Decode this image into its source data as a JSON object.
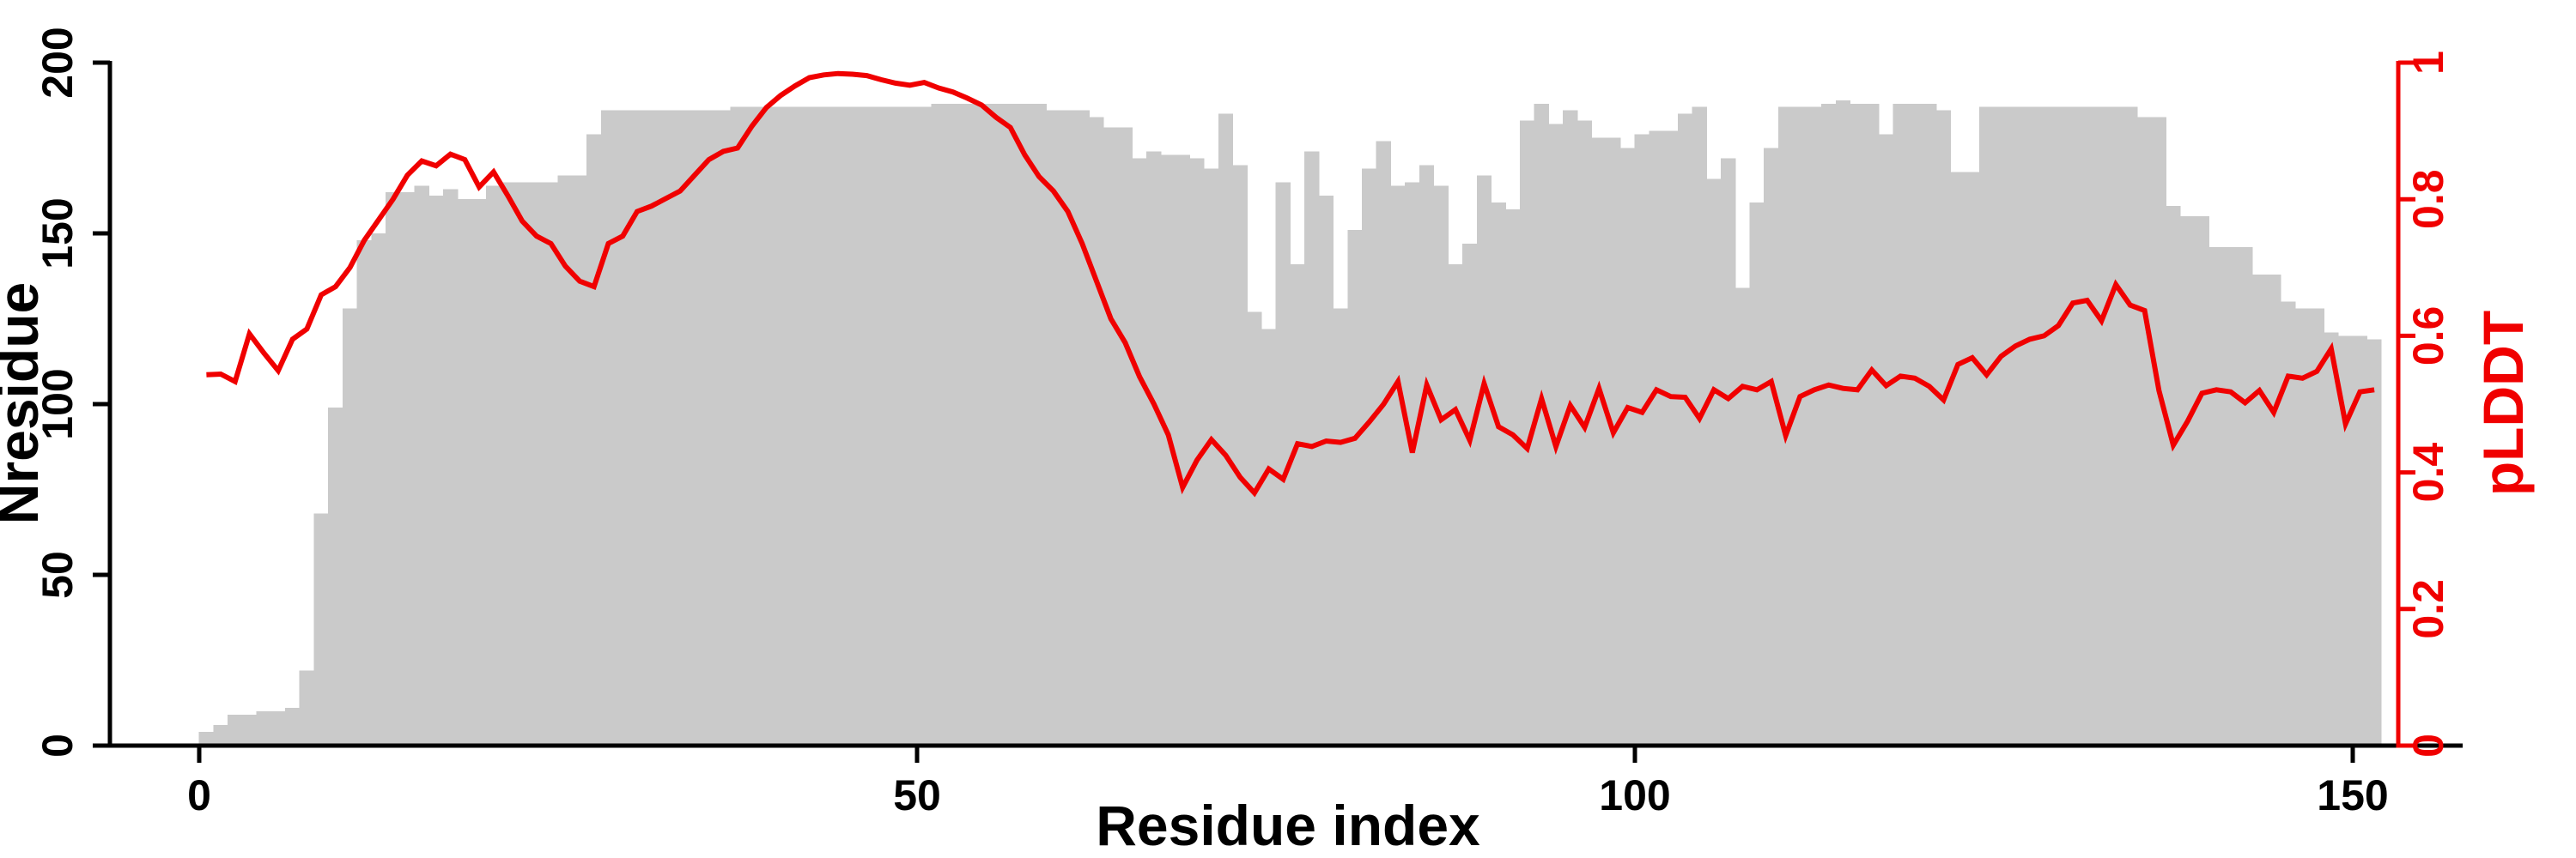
{
  "chart_data": {
    "type": "bar",
    "subtype": "dual-axis bar+line",
    "title": "",
    "xlabel": "Residue index",
    "ylabel_left": "Nresidue",
    "ylabel_right": "pLDDT",
    "grid": false,
    "legend_position": "none",
    "background_color": "#ffffff",
    "bar_color": "#cacaca",
    "line_color": "#f00000",
    "left_axis_color": "#000000",
    "right_axis_color": "#f00000",
    "x_axis": {
      "label": "Residue index",
      "tick_values": [
        0,
        50,
        100,
        150
      ],
      "tick_labels": [
        "0",
        "50",
        "100",
        "150"
      ],
      "range": [
        0,
        152
      ]
    },
    "y_axis_left": {
      "label": "Nresidue",
      "tick_values": [
        0,
        50,
        100,
        150,
        200
      ],
      "tick_labels": [
        "0",
        "50",
        "100",
        "150",
        "200"
      ],
      "range": [
        0,
        200
      ]
    },
    "y_axis_right": {
      "label": "pLDDT",
      "tick_values": [
        0,
        0.2,
        0.4,
        0.6,
        0.8,
        1
      ],
      "tick_labels": [
        "0",
        "0.2",
        "0.4",
        "0.6",
        "0.8",
        "1"
      ],
      "range": [
        0,
        1
      ]
    },
    "n_residues": 152,
    "x_first_residue": 1,
    "series": [
      {
        "name": "Nresidue",
        "type": "bar",
        "axis": "left",
        "color": "#cacaca",
        "values": [
          4,
          6,
          9,
          9,
          10,
          10,
          11,
          22,
          68,
          99,
          128,
          148,
          150,
          162,
          162,
          164,
          161,
          163,
          160,
          160,
          164,
          165,
          165,
          165,
          165,
          167,
          167,
          179,
          186,
          186,
          186,
          186,
          186,
          186,
          186,
          186,
          186,
          187,
          187,
          187,
          187,
          187,
          187,
          187,
          187,
          187,
          187,
          187,
          187,
          187,
          187,
          188,
          188,
          188,
          188,
          188,
          188,
          188,
          188,
          186,
          186,
          186,
          184,
          181,
          181,
          172,
          174,
          173,
          173,
          172,
          169,
          185,
          170,
          127,
          122,
          165,
          141,
          174,
          161,
          128,
          151,
          169,
          177,
          164,
          165,
          170,
          164,
          141,
          147,
          167,
          159,
          157,
          183,
          188,
          182,
          186,
          183,
          178,
          178,
          175,
          179,
          180,
          180,
          185,
          187,
          166,
          172,
          134,
          159,
          175,
          187,
          187,
          187,
          188,
          189,
          188,
          188,
          179,
          188,
          188,
          188,
          186,
          168,
          168,
          187,
          187,
          187,
          187,
          187,
          187,
          187,
          187,
          187,
          187,
          187,
          184,
          184,
          158,
          155,
          155,
          146,
          146,
          146,
          138,
          138,
          130,
          128,
          128,
          121,
          120,
          120,
          119
        ]
      },
      {
        "name": "pLDDT",
        "type": "line",
        "axis": "right",
        "color": "#f00000",
        "values": [
          0.543,
          0.544,
          0.533,
          0.603,
          0.575,
          0.549,
          0.595,
          0.61,
          0.66,
          0.672,
          0.7,
          0.74,
          0.77,
          0.8,
          0.835,
          0.856,
          0.849,
          0.866,
          0.858,
          0.818,
          0.84,
          0.805,
          0.768,
          0.746,
          0.735,
          0.702,
          0.68,
          0.672,
          0.735,
          0.746,
          0.782,
          0.79,
          0.801,
          0.812,
          0.835,
          0.858,
          0.87,
          0.875,
          0.907,
          0.934,
          0.952,
          0.966,
          0.978,
          0.982,
          0.984,
          0.983,
          0.981,
          0.975,
          0.97,
          0.967,
          0.971,
          0.963,
          0.957,
          0.948,
          0.938,
          0.92,
          0.905,
          0.865,
          0.833,
          0.812,
          0.782,
          0.735,
          0.68,
          0.625,
          0.59,
          0.54,
          0.5,
          0.455,
          0.378,
          0.418,
          0.448,
          0.425,
          0.393,
          0.37,
          0.405,
          0.39,
          0.442,
          0.438,
          0.446,
          0.444,
          0.45,
          0.474,
          0.5,
          0.533,
          0.429,
          0.528,
          0.477,
          0.492,
          0.447,
          0.53,
          0.467,
          0.455,
          0.435,
          0.508,
          0.438,
          0.498,
          0.466,
          0.523,
          0.458,
          0.495,
          0.488,
          0.521,
          0.511,
          0.51,
          0.479,
          0.521,
          0.508,
          0.526,
          0.521,
          0.533,
          0.454,
          0.511,
          0.521,
          0.528,
          0.523,
          0.521,
          0.55,
          0.527,
          0.541,
          0.538,
          0.526,
          0.506,
          0.558,
          0.568,
          0.543,
          0.57,
          0.585,
          0.595,
          0.6,
          0.615,
          0.648,
          0.652,
          0.622,
          0.675,
          0.645,
          0.637,
          0.52,
          0.44,
          0.475,
          0.516,
          0.521,
          0.518,
          0.502,
          0.52,
          0.488,
          0.541,
          0.538,
          0.548,
          0.581,
          0.471,
          0.518,
          0.521
        ]
      }
    ]
  }
}
